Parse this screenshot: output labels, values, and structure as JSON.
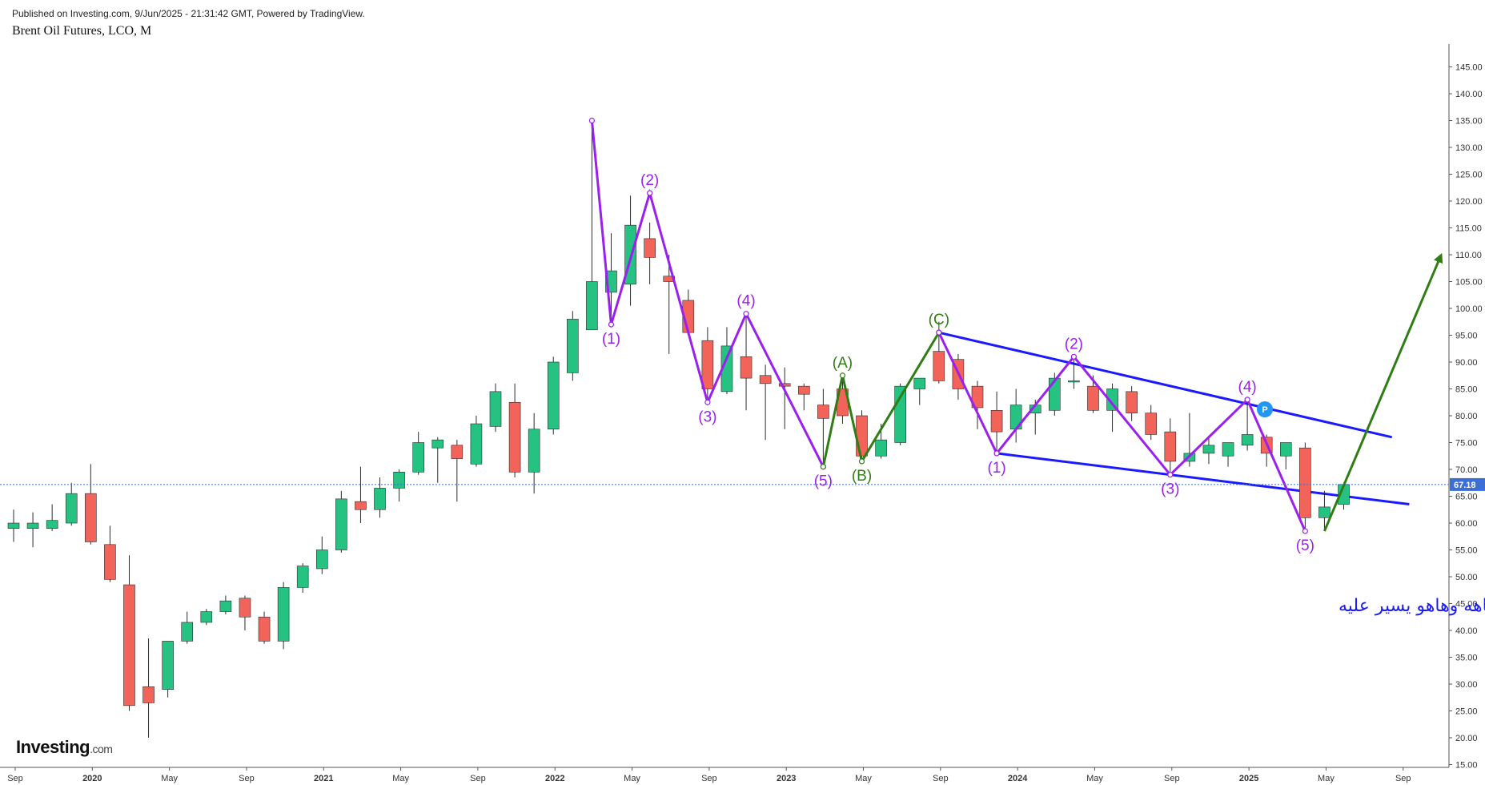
{
  "header": {
    "published": "Published on Investing.com, 9/Jun/2025 - 21:31:42 GMT, Powered by TradingView.",
    "title": "Brent Oil Futures, LCO, M"
  },
  "logo": {
    "main": "Investing",
    "suffix": ".com"
  },
  "colors": {
    "up": "#26c281",
    "down": "#f2645a",
    "purple": "#9a1ff0",
    "green": "#2f7d14",
    "blue": "#1a1aff",
    "price_tag": "#3b6fd6"
  },
  "annotation": "بالشارت اعلاه حددت قاع النفط ورسمت اتجاهه وهاهو يسير عليه",
  "badge": "P",
  "chart_data": {
    "type": "candlestick",
    "title": "Brent Oil Futures, LCO, M",
    "y_axis": {
      "ylim": [
        13,
        150
      ],
      "ticks": [
        "145.00",
        "140.00",
        "135.00",
        "130.00",
        "125.00",
        "120.00",
        "115.00",
        "110.00",
        "105.00",
        "100.00",
        "95.00",
        "90.00",
        "85.00",
        "80.00",
        "75.00",
        "70.00",
        "65.00",
        "60.00",
        "55.00",
        "50.00",
        "45.00",
        "40.00",
        "35.00",
        "30.00",
        "25.00",
        "20.00",
        "15.00"
      ]
    },
    "x_axis": {
      "labels": [
        "Sep",
        "2020",
        "May",
        "Sep",
        "2021",
        "May",
        "Sep",
        "2022",
        "May",
        "Sep",
        "2023",
        "May",
        "Sep",
        "2024",
        "May",
        "Sep",
        "2025",
        "May",
        "Sep"
      ]
    },
    "last_price": "67.18",
    "candles": [
      {
        "o": 59.0,
        "h": 62.5,
        "l": 56.5,
        "c": 60.0
      },
      {
        "o": 59.0,
        "h": 62.0,
        "l": 55.5,
        "c": 60.0
      },
      {
        "o": 59.0,
        "h": 63.5,
        "l": 58.5,
        "c": 60.5
      },
      {
        "o": 60.0,
        "h": 67.5,
        "l": 59.5,
        "c": 65.5
      },
      {
        "o": 65.5,
        "h": 71.0,
        "l": 56.0,
        "c": 56.5
      },
      {
        "o": 56.0,
        "h": 59.5,
        "l": 49.0,
        "c": 49.5
      },
      {
        "o": 48.5,
        "h": 54.0,
        "l": 25.0,
        "c": 26.0
      },
      {
        "o": 29.5,
        "h": 38.5,
        "l": 20.0,
        "c": 26.5
      },
      {
        "o": 29.0,
        "h": 38.0,
        "l": 27.5,
        "c": 38.0
      },
      {
        "o": 38.0,
        "h": 43.5,
        "l": 37.5,
        "c": 41.5
      },
      {
        "o": 41.5,
        "h": 44.0,
        "l": 41.0,
        "c": 43.5
      },
      {
        "o": 43.5,
        "h": 46.5,
        "l": 43.0,
        "c": 45.5
      },
      {
        "o": 46.0,
        "h": 46.5,
        "l": 40.0,
        "c": 42.5
      },
      {
        "o": 42.5,
        "h": 43.5,
        "l": 37.5,
        "c": 38.0
      },
      {
        "o": 38.0,
        "h": 49.0,
        "l": 36.5,
        "c": 48.0
      },
      {
        "o": 48.0,
        "h": 52.5,
        "l": 47.0,
        "c": 52.0
      },
      {
        "o": 51.5,
        "h": 57.5,
        "l": 50.5,
        "c": 55.0
      },
      {
        "o": 55.0,
        "h": 66.0,
        "l": 54.5,
        "c": 64.5
      },
      {
        "o": 64.0,
        "h": 70.5,
        "l": 60.0,
        "c": 62.5
      },
      {
        "o": 62.5,
        "h": 68.5,
        "l": 61.0,
        "c": 66.5
      },
      {
        "o": 66.5,
        "h": 70.0,
        "l": 64.0,
        "c": 69.5
      },
      {
        "o": 69.5,
        "h": 77.0,
        "l": 69.0,
        "c": 75.0
      },
      {
        "o": 74.0,
        "h": 76.0,
        "l": 67.5,
        "c": 75.5
      },
      {
        "o": 74.5,
        "h": 75.5,
        "l": 64.0,
        "c": 72.0
      },
      {
        "o": 71.0,
        "h": 80.0,
        "l": 70.5,
        "c": 78.5
      },
      {
        "o": 78.0,
        "h": 86.0,
        "l": 77.0,
        "c": 84.5
      },
      {
        "o": 82.5,
        "h": 86.0,
        "l": 68.5,
        "c": 69.5
      },
      {
        "o": 69.5,
        "h": 80.5,
        "l": 65.5,
        "c": 77.5
      },
      {
        "o": 77.5,
        "h": 91.0,
        "l": 76.5,
        "c": 90.0
      },
      {
        "o": 88.0,
        "h": 99.5,
        "l": 86.5,
        "c": 98.0
      },
      {
        "o": 96.0,
        "h": 135.0,
        "l": 96.0,
        "c": 105.0
      },
      {
        "o": 103.0,
        "h": 114.0,
        "l": 97.0,
        "c": 107.0
      },
      {
        "o": 104.5,
        "h": 121.0,
        "l": 100.5,
        "c": 115.5
      },
      {
        "o": 113.0,
        "h": 116.0,
        "l": 104.5,
        "c": 109.5
      },
      {
        "o": 106.0,
        "h": 110.0,
        "l": 91.5,
        "c": 105.0
      },
      {
        "o": 101.5,
        "h": 103.5,
        "l": 95.5,
        "c": 95.5
      },
      {
        "o": 94.0,
        "h": 96.5,
        "l": 82.5,
        "c": 85.0
      },
      {
        "o": 84.5,
        "h": 96.5,
        "l": 84.0,
        "c": 93.0
      },
      {
        "o": 91.0,
        "h": 98.5,
        "l": 81.0,
        "c": 87.0
      },
      {
        "o": 87.5,
        "h": 89.5,
        "l": 75.5,
        "c": 86.0
      },
      {
        "o": 86.0,
        "h": 89.0,
        "l": 77.5,
        "c": 85.5
      },
      {
        "o": 85.5,
        "h": 86.0,
        "l": 81.0,
        "c": 84.0
      },
      {
        "o": 82.0,
        "h": 85.0,
        "l": 70.5,
        "c": 79.5
      },
      {
        "o": 85.0,
        "h": 88.0,
        "l": 78.5,
        "c": 80.0
      },
      {
        "o": 80.0,
        "h": 81.0,
        "l": 71.5,
        "c": 72.5
      },
      {
        "o": 72.5,
        "h": 78.5,
        "l": 72.0,
        "c": 75.5
      },
      {
        "o": 75.0,
        "h": 86.0,
        "l": 74.5,
        "c": 85.5
      },
      {
        "o": 85.0,
        "h": 87.0,
        "l": 82.0,
        "c": 87.0
      },
      {
        "o": 92.0,
        "h": 97.5,
        "l": 86.0,
        "c": 86.5
      },
      {
        "o": 90.5,
        "h": 91.5,
        "l": 83.0,
        "c": 85.0
      },
      {
        "o": 85.5,
        "h": 86.5,
        "l": 77.5,
        "c": 81.5
      },
      {
        "o": 81.0,
        "h": 84.5,
        "l": 72.5,
        "c": 77.0
      },
      {
        "o": 77.5,
        "h": 85.0,
        "l": 75.0,
        "c": 82.0
      },
      {
        "o": 80.5,
        "h": 83.0,
        "l": 76.5,
        "c": 82.0
      },
      {
        "o": 81.0,
        "h": 88.0,
        "l": 80.0,
        "c": 87.0
      },
      {
        "o": 86.5,
        "h": 90.5,
        "l": 85.0,
        "c": 86.5
      },
      {
        "o": 85.5,
        "h": 87.5,
        "l": 80.5,
        "c": 81.0
      },
      {
        "o": 81.0,
        "h": 86.0,
        "l": 77.0,
        "c": 85.0
      },
      {
        "o": 84.5,
        "h": 85.5,
        "l": 79.0,
        "c": 80.5
      },
      {
        "o": 80.5,
        "h": 82.0,
        "l": 75.5,
        "c": 76.5
      },
      {
        "o": 77.0,
        "h": 79.5,
        "l": 69.0,
        "c": 71.5
      },
      {
        "o": 71.5,
        "h": 80.5,
        "l": 70.5,
        "c": 73.0
      },
      {
        "o": 73.0,
        "h": 76.0,
        "l": 71.0,
        "c": 74.5
      },
      {
        "o": 72.5,
        "h": 75.0,
        "l": 70.5,
        "c": 75.0
      },
      {
        "o": 74.5,
        "h": 82.5,
        "l": 73.5,
        "c": 76.5
      },
      {
        "o": 76.0,
        "h": 76.5,
        "l": 70.5,
        "c": 73.0
      },
      {
        "o": 72.5,
        "h": 75.0,
        "l": 70.0,
        "c": 75.0
      },
      {
        "o": 74.0,
        "h": 75.0,
        "l": 58.5,
        "c": 61.0
      },
      {
        "o": 61.0,
        "h": 66.0,
        "l": 58.5,
        "c": 63.0
      },
      {
        "o": 63.5,
        "h": 67.5,
        "l": 62.5,
        "c": 67.2
      }
    ],
    "waves": [
      {
        "color": "purple",
        "points": [
          [
            30,
            135.0
          ],
          [
            31,
            97.0
          ],
          [
            33,
            121.5
          ],
          [
            36,
            82.5
          ],
          [
            38,
            99.0
          ],
          [
            42,
            70.5
          ]
        ],
        "labels": [
          {
            "i": 31,
            "v": 97.0,
            "text": "(1)",
            "pos": "below"
          },
          {
            "i": 33,
            "v": 121.5,
            "text": "(2)",
            "pos": "above"
          },
          {
            "i": 36,
            "v": 82.5,
            "text": "(3)",
            "pos": "below"
          },
          {
            "i": 38,
            "v": 99.0,
            "text": "(4)",
            "pos": "above"
          },
          {
            "i": 42,
            "v": 70.5,
            "text": "(5)",
            "pos": "below"
          }
        ]
      },
      {
        "color": "green",
        "points": [
          [
            42,
            70.5
          ],
          [
            43,
            87.5
          ],
          [
            44,
            71.5
          ],
          [
            48,
            95.5
          ]
        ],
        "labels": [
          {
            "i": 43,
            "v": 87.5,
            "text": "(A)",
            "pos": "above"
          },
          {
            "i": 44,
            "v": 71.5,
            "text": "(B)",
            "pos": "below"
          },
          {
            "i": 48,
            "v": 95.5,
            "text": "(C)",
            "pos": "above"
          }
        ]
      },
      {
        "color": "purple",
        "points": [
          [
            48,
            95.5
          ],
          [
            51,
            73.0
          ],
          [
            55,
            91.0
          ],
          [
            60,
            69.0
          ],
          [
            64,
            83.0
          ],
          [
            67,
            58.5
          ]
        ],
        "labels": [
          {
            "i": 51,
            "v": 73.0,
            "text": "(1)",
            "pos": "below"
          },
          {
            "i": 55,
            "v": 91.0,
            "text": "(2)",
            "pos": "above"
          },
          {
            "i": 60,
            "v": 69.0,
            "text": "(3)",
            "pos": "below"
          },
          {
            "i": 64,
            "v": 83.0,
            "text": "(4)",
            "pos": "above"
          },
          {
            "i": 67,
            "v": 58.5,
            "text": "(5)",
            "pos": "below"
          }
        ]
      }
    ],
    "trendlines": [
      {
        "color": "blue",
        "from": [
          48,
          95.5
        ],
        "to": [
          71.5,
          76.0
        ]
      },
      {
        "color": "blue",
        "from": [
          51,
          73.0
        ],
        "to": [
          72.4,
          63.5
        ]
      }
    ],
    "forecast_arrow": {
      "color": "green",
      "from": [
        68,
        58.5
      ],
      "to": [
        74.0,
        109.5
      ]
    }
  }
}
